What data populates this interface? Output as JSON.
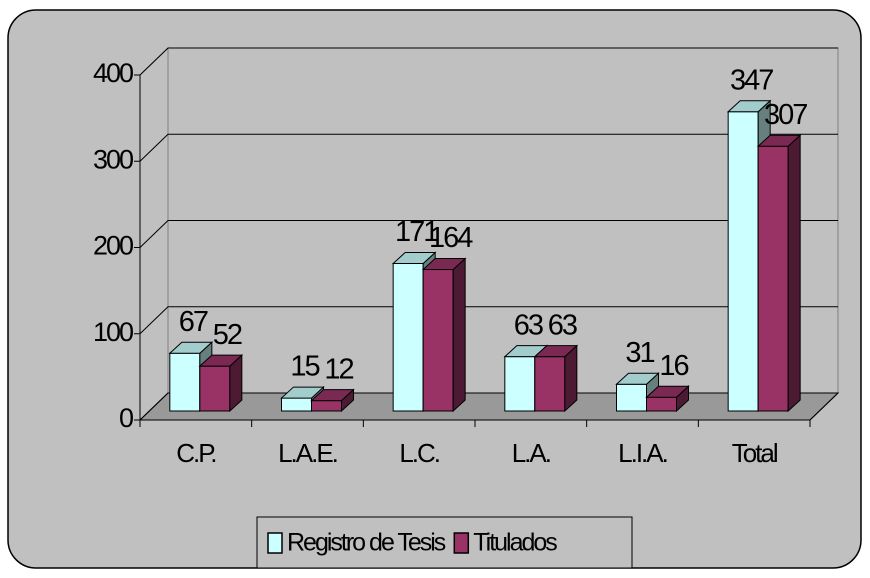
{
  "chart_data": {
    "type": "bar3d",
    "categories": [
      "C.P.",
      "L.A.E.",
      "L.C.",
      "L.A.",
      "L.I.A.",
      "Total"
    ],
    "series": [
      {
        "name": "Registro de Tesis",
        "color": "#ccffff",
        "values": [
          67,
          15,
          171,
          63,
          31,
          347
        ]
      },
      {
        "name": "Titulados",
        "color": "#993366",
        "values": [
          52,
          12,
          164,
          63,
          16,
          307
        ]
      }
    ],
    "ylim": [
      0,
      400
    ],
    "yticks": [
      0,
      100,
      200,
      300,
      400
    ],
    "grid": true,
    "legend": "bottom"
  }
}
